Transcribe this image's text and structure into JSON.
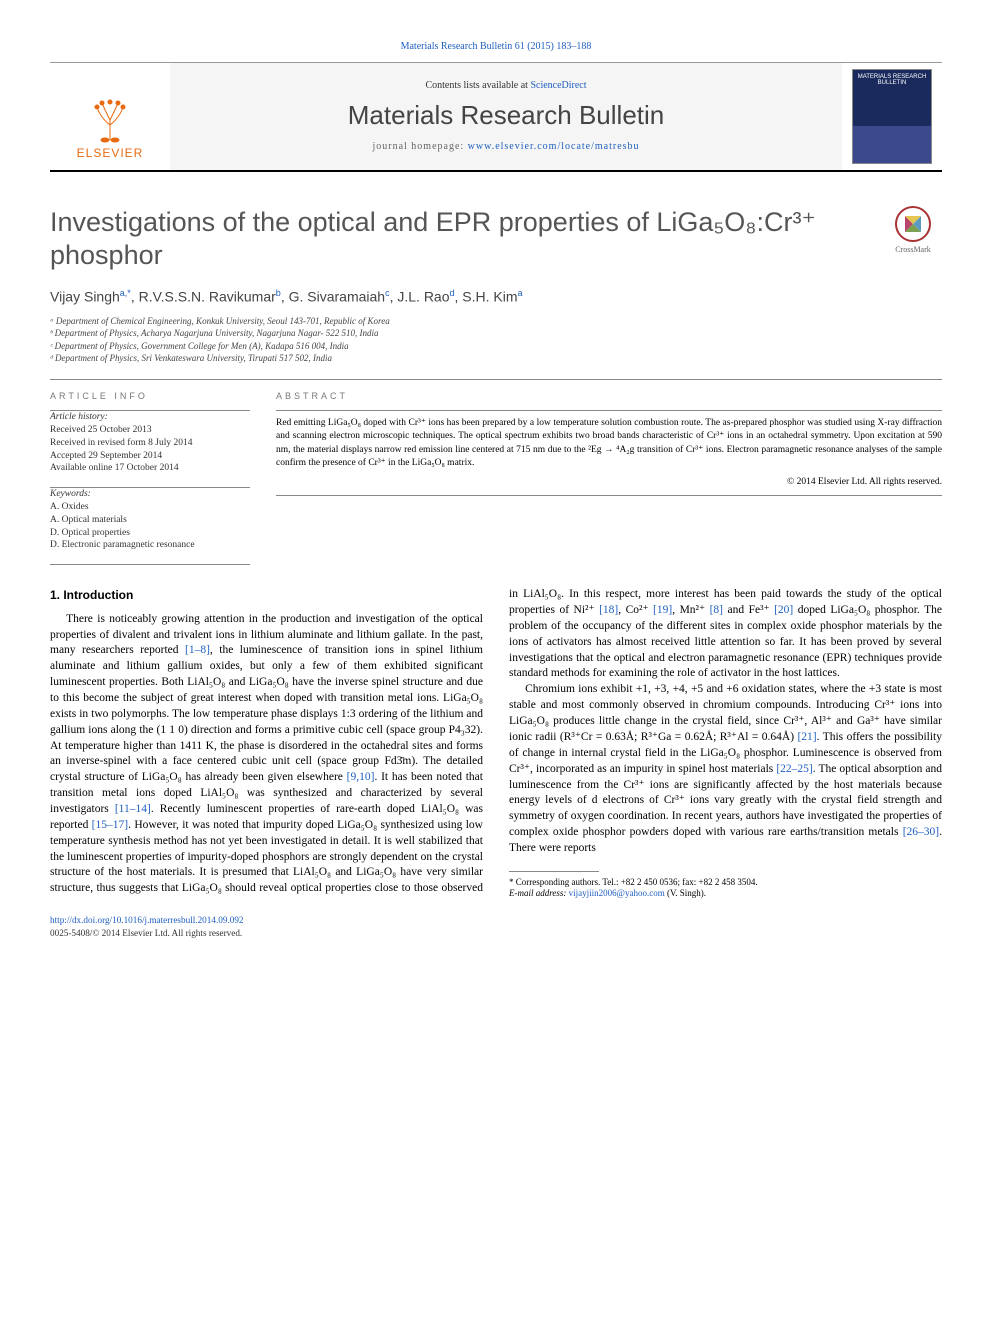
{
  "top_ref": "Materials Research Bulletin 61 (2015) 183–188",
  "header": {
    "contents_line_prefix": "Contents lists available at ",
    "contents_line_link": "ScienceDirect",
    "journal_name": "Materials Research Bulletin",
    "homepage_prefix": "journal homepage: ",
    "homepage_url": "www.elsevier.com/locate/matresbu",
    "publisher": "ELSEVIER",
    "cover_text_top": "MATERIALS RESEARCH BULLETIN"
  },
  "title": "Investigations of the optical and EPR properties of LiGa₅O₈:Cr³⁺ phosphor",
  "crossmark_label": "CrossMark",
  "authors_html": "Vijay Singh<sup>a,*</sup>, R.V.S.S.N. Ravikumar<sup>b</sup>, G. Sivaramaiah<sup>c</sup>, J.L. Rao<sup>d</sup>, S.H. Kim<sup>a</sup>",
  "affiliations": [
    "ᵃ Department of Chemical Engineering, Konkuk University, Seoul 143-701, Republic of Korea",
    "ᵇ Department of Physics, Acharya Nagarjuna University, Nagarjuna Nagar- 522 510, India",
    "ᶜ Department of Physics, Government College for Men (A), Kadapa 516 004, India",
    "ᵈ Department of Physics, Sri Venkateswara University, Tirupati 517 502, India"
  ],
  "article_info": {
    "heading": "ARTICLE INFO",
    "history_label": "Article history:",
    "history": [
      "Received 25 October 2013",
      "Received in revised form 8 July 2014",
      "Accepted 29 September 2014",
      "Available online 17 October 2014"
    ],
    "keywords_label": "Keywords:",
    "keywords": [
      "A. Oxides",
      "A. Optical materials",
      "D. Optical properties",
      "D. Electronic paramagnetic resonance"
    ]
  },
  "abstract": {
    "heading": "ABSTRACT",
    "text": "Red emitting LiGa₅O₈ doped with Cr³⁺ ions has been prepared by a low temperature solution combustion route. The as-prepared phosphor was studied using X-ray diffraction and scanning electron microscopic techniques. The optical spectrum exhibits two broad bands characteristic of Cr³⁺ ions in an octahedral symmetry. Upon excitation at 590 nm, the material displays narrow red emission line centered at 715 nm due to the ²Eg → ⁴A₂g transition of Cr³⁺ ions. Electron paramagnetic resonance analyses of the sample confirm the presence of Cr³⁺ in the LiGa₅O₈ matrix.",
    "copyright": "© 2014 Elsevier Ltd. All rights reserved."
  },
  "body": {
    "section_title": "1. Introduction",
    "para1_a": "There is noticeably growing attention in the production and investigation of the optical properties of divalent and trivalent ions in lithium aluminate and lithium gallate. In the past, many researchers reported ",
    "cite1": "[1–8]",
    "para1_b": ", the luminescence of transition ions in spinel lithium aluminate and lithium gallium oxides, but only a few of them exhibited significant luminescent properties. Both LiAl₅O₈ and LiGa₅O₈ have the inverse spinel structure and due to this become the subject of great interest when doped with transition metal ions. LiGa₅O₈ exists in two polymorphs. The low temperature phase displays 1:3 ordering of the lithium and gallium ions along the (1 1 0) direction and forms a primitive cubic cell (space group P4₃32). At temperature higher than 1411 K, the phase is disordered in the octahedral sites and forms an inverse-spinel with a face centered cubic unit cell (space group Fd3̄m). The detailed crystal structure of LiGa₅O₈ has already been given elsewhere ",
    "cite2": "[9,10]",
    "para1_c": ". It has been noted that transition metal ions doped LiAl₅O₈ was synthesized and characterized by several investigators ",
    "cite3": "[11–14]",
    "para1_d": ". Recently luminescent properties of rare-earth doped LiAl₅O₈ was reported ",
    "cite4": "[15–17]",
    "para1_e": ". However, it was noted that impurity doped LiGa₅O₈ synthesized using low temperature synthesis method has not yet been investigated in detail. It is well stabilized ",
    "para2_a": "that the luminescent properties of impurity-doped phosphors are strongly dependent on the crystal structure of the host materials. It is presumed that LiAl₅O₈ and LiGa₅O₈ have very similar structure, thus suggests that LiGa₅O₈ should reveal optical properties close to those observed in LiAl₅O₈. In this respect, more interest has been paid towards the study of the optical properties of Ni²⁺ ",
    "cite5": "[18]",
    "para2_b": ", Co²⁺ ",
    "cite6": "[19]",
    "para2_c": ", Mn²⁺ ",
    "cite7": "[8]",
    "para2_d": " and Fe³⁺ ",
    "cite8": "[20]",
    "para2_e": " doped LiGa₅O₈ phosphor. The problem of the occupancy of the different sites in complex oxide phosphor materials by the ions of activators has almost received little attention so far. It has been proved by several investigations that the optical and electron paramagnetic resonance (EPR) techniques provide standard methods for examining the role of activator in the host lattices.",
    "para3_a": "Chromium ions exhibit +1, +3, +4, +5 and +6 oxidation states, where the +3 state is most stable and most commonly observed in chromium compounds. Introducing Cr³⁺ ions into LiGa₅O₈ produces little change in the crystal field, since Cr³⁺, Al³⁺ and Ga³⁺ have similar ionic radii (R³⁺Cr = 0.63Å; R³⁺Ga = 0.62Å; R³⁺Al = 0.64Å) ",
    "cite9": "[21]",
    "para3_b": ". This offers the possibility of change in internal crystal field in the LiGa₅O₈ phosphor. Luminescence is observed from Cr³⁺, incorporated as an impurity in spinel host materials ",
    "cite10": "[22–25]",
    "para3_c": ". The optical absorption and luminescence from the Cr³⁺ ions are significantly affected by the host materials because energy levels of d electrons of Cr³⁺ ions vary greatly with the crystal field strength and symmetry of oxygen coordination. In recent years, authors have investigated the properties of complex oxide phosphor powders doped with various rare earths/transition metals ",
    "cite11": "[26–30]",
    "para3_d": ". There were reports"
  },
  "footnote": {
    "corresp": "* Corresponding authors. Tel.: +82 2 450 0536; fax: +82 2 458 3504.",
    "email_label": "E-mail address: ",
    "email": "vijayjiin2006@yahoo.com",
    "email_suffix": " (V. Singh)."
  },
  "doi": {
    "url": "http://dx.doi.org/10.1016/j.materresbull.2014.09.092",
    "issn_line": "0025-5408/© 2014 Elsevier Ltd. All rights reserved."
  },
  "colors": {
    "link": "#2060c0",
    "elsevier_orange": "#e86a10",
    "heading_gray": "#555",
    "text": "#000"
  }
}
